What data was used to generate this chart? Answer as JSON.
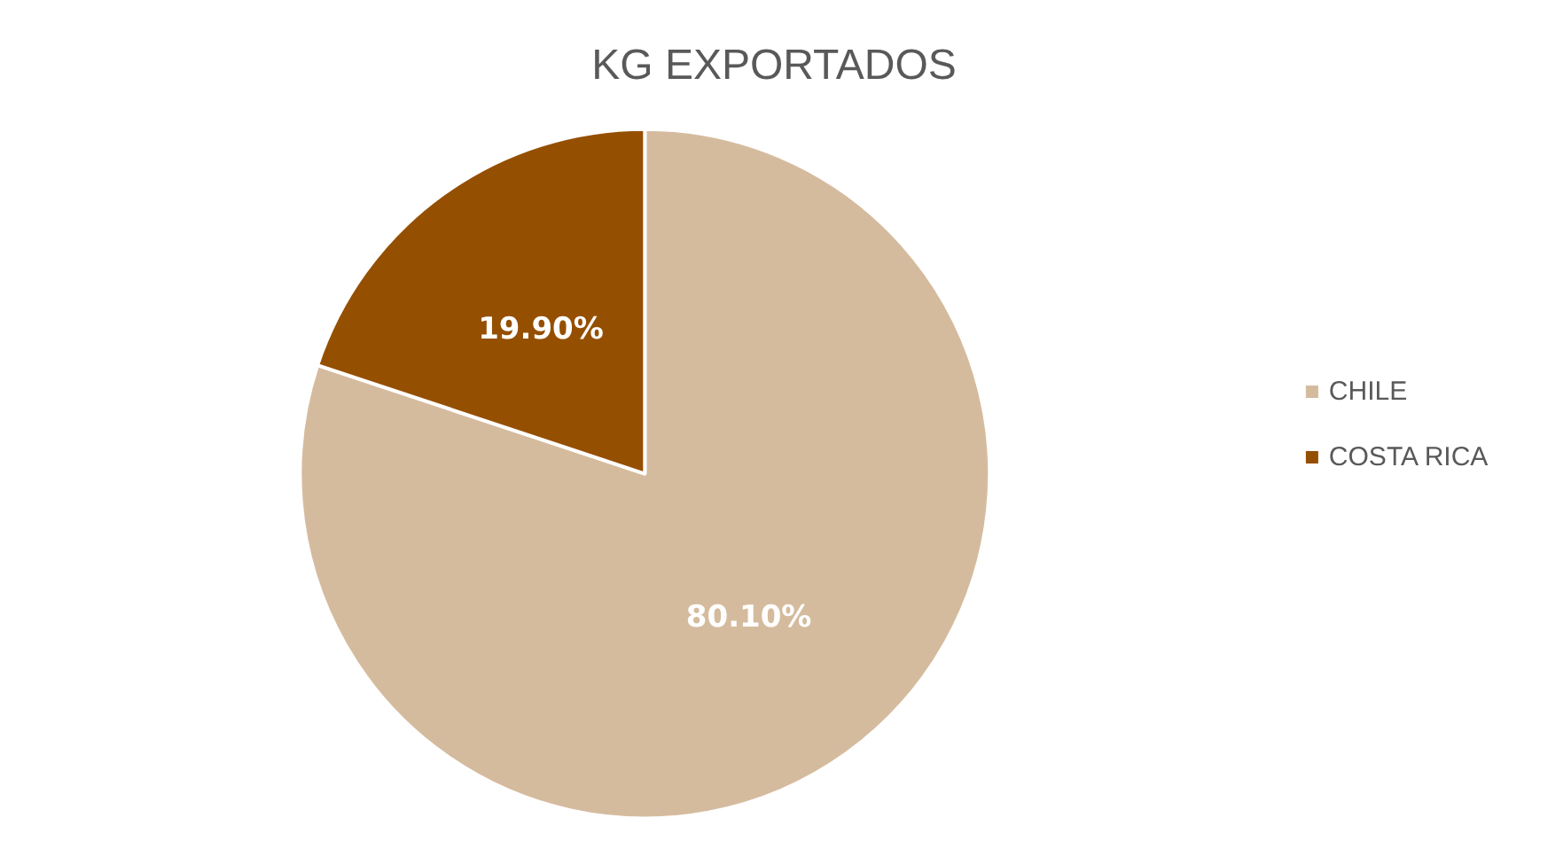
{
  "chart_data": {
    "type": "pie",
    "title": "KG EXPORTADOS",
    "categories": [
      "CHILE",
      "COSTA RICA"
    ],
    "values": [
      80.1,
      19.9
    ],
    "value_labels": [
      "80.10%",
      "19.90%"
    ],
    "colors": [
      "#d5bb9e",
      "#954f00"
    ],
    "legend": "right"
  }
}
